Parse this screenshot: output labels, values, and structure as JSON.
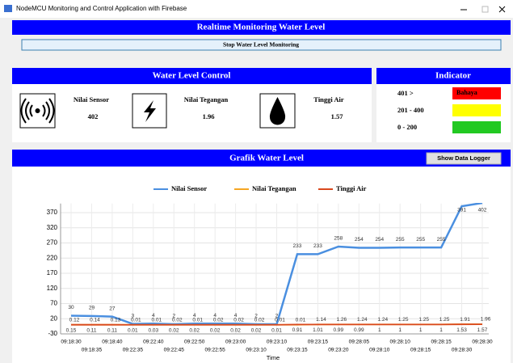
{
  "window": {
    "title": "NodeMCU Monitoring and Control Application with Firebase"
  },
  "header": {
    "title": "Realtime Monitoring Water Level",
    "button": "Stop Water Level Monitoring"
  },
  "control": {
    "title": "Water Level Control",
    "items": [
      {
        "label": "Nilai Sensor",
        "value": "402"
      },
      {
        "label": "Nilai Tegangan",
        "value": "1.96"
      },
      {
        "label": "Tinggi Air",
        "value": "1.57"
      }
    ]
  },
  "indicator": {
    "title": "Indicator",
    "rows": [
      {
        "range": "401 >",
        "label": "Bahaya",
        "color": "#ff0000"
      },
      {
        "range": "201 - 400",
        "color": "#ffff00"
      },
      {
        "range": "0 - 200",
        "color": "#22c922"
      }
    ]
  },
  "graph": {
    "title": "Grafik Water Level",
    "button": "Show Data Logger"
  },
  "chart_data": {
    "type": "line",
    "xlabel": "Time",
    "categories": [
      "09:18:30",
      "09:18:35",
      "09:18:40",
      "09:22:35",
      "09:22:40",
      "09:22:45",
      "09:22:50",
      "09:22:55",
      "09:23:00",
      "09:23:10",
      "09:23:10",
      "09:23:15",
      "09:23:15",
      "09:23:20",
      "09:28:05",
      "09:28:10",
      "09:28:10",
      "09:28:15",
      "09:28:15",
      "09:28:30",
      "09:28:30"
    ],
    "series": [
      {
        "name": "Nilai Sensor",
        "color": "#4a8fe0",
        "values": [
          30,
          29,
          27,
          3,
          4,
          2,
          4,
          4,
          4,
          2,
          2,
          233,
          233,
          258,
          254,
          254,
          255,
          255,
          255,
          391,
          402
        ]
      },
      {
        "name": "Nilai Tegangan",
        "color": "#f5a623",
        "values": [
          0.12,
          0.14,
          0.13,
          0.01,
          0.01,
          0.02,
          0.01,
          0.02,
          0.02,
          0.02,
          0.01,
          0.01,
          1.14,
          1.26,
          1.24,
          1.24,
          1.25,
          1.25,
          1.25,
          1.91,
          1.96
        ]
      },
      {
        "name": "Tinggi Air",
        "color": "#d9481e",
        "values": [
          0.15,
          0.11,
          0.11,
          0.01,
          0.03,
          0.02,
          0.02,
          0.02,
          0.02,
          0.02,
          0.01,
          0.91,
          1.01,
          0.99,
          0.99,
          1,
          1,
          1,
          1,
          1.53,
          1.57
        ]
      }
    ],
    "ylim": [
      -30,
      400
    ],
    "yticks": [
      -30,
      20,
      70,
      120,
      170,
      220,
      270,
      320,
      370
    ],
    "grid": true,
    "legend": "top"
  }
}
